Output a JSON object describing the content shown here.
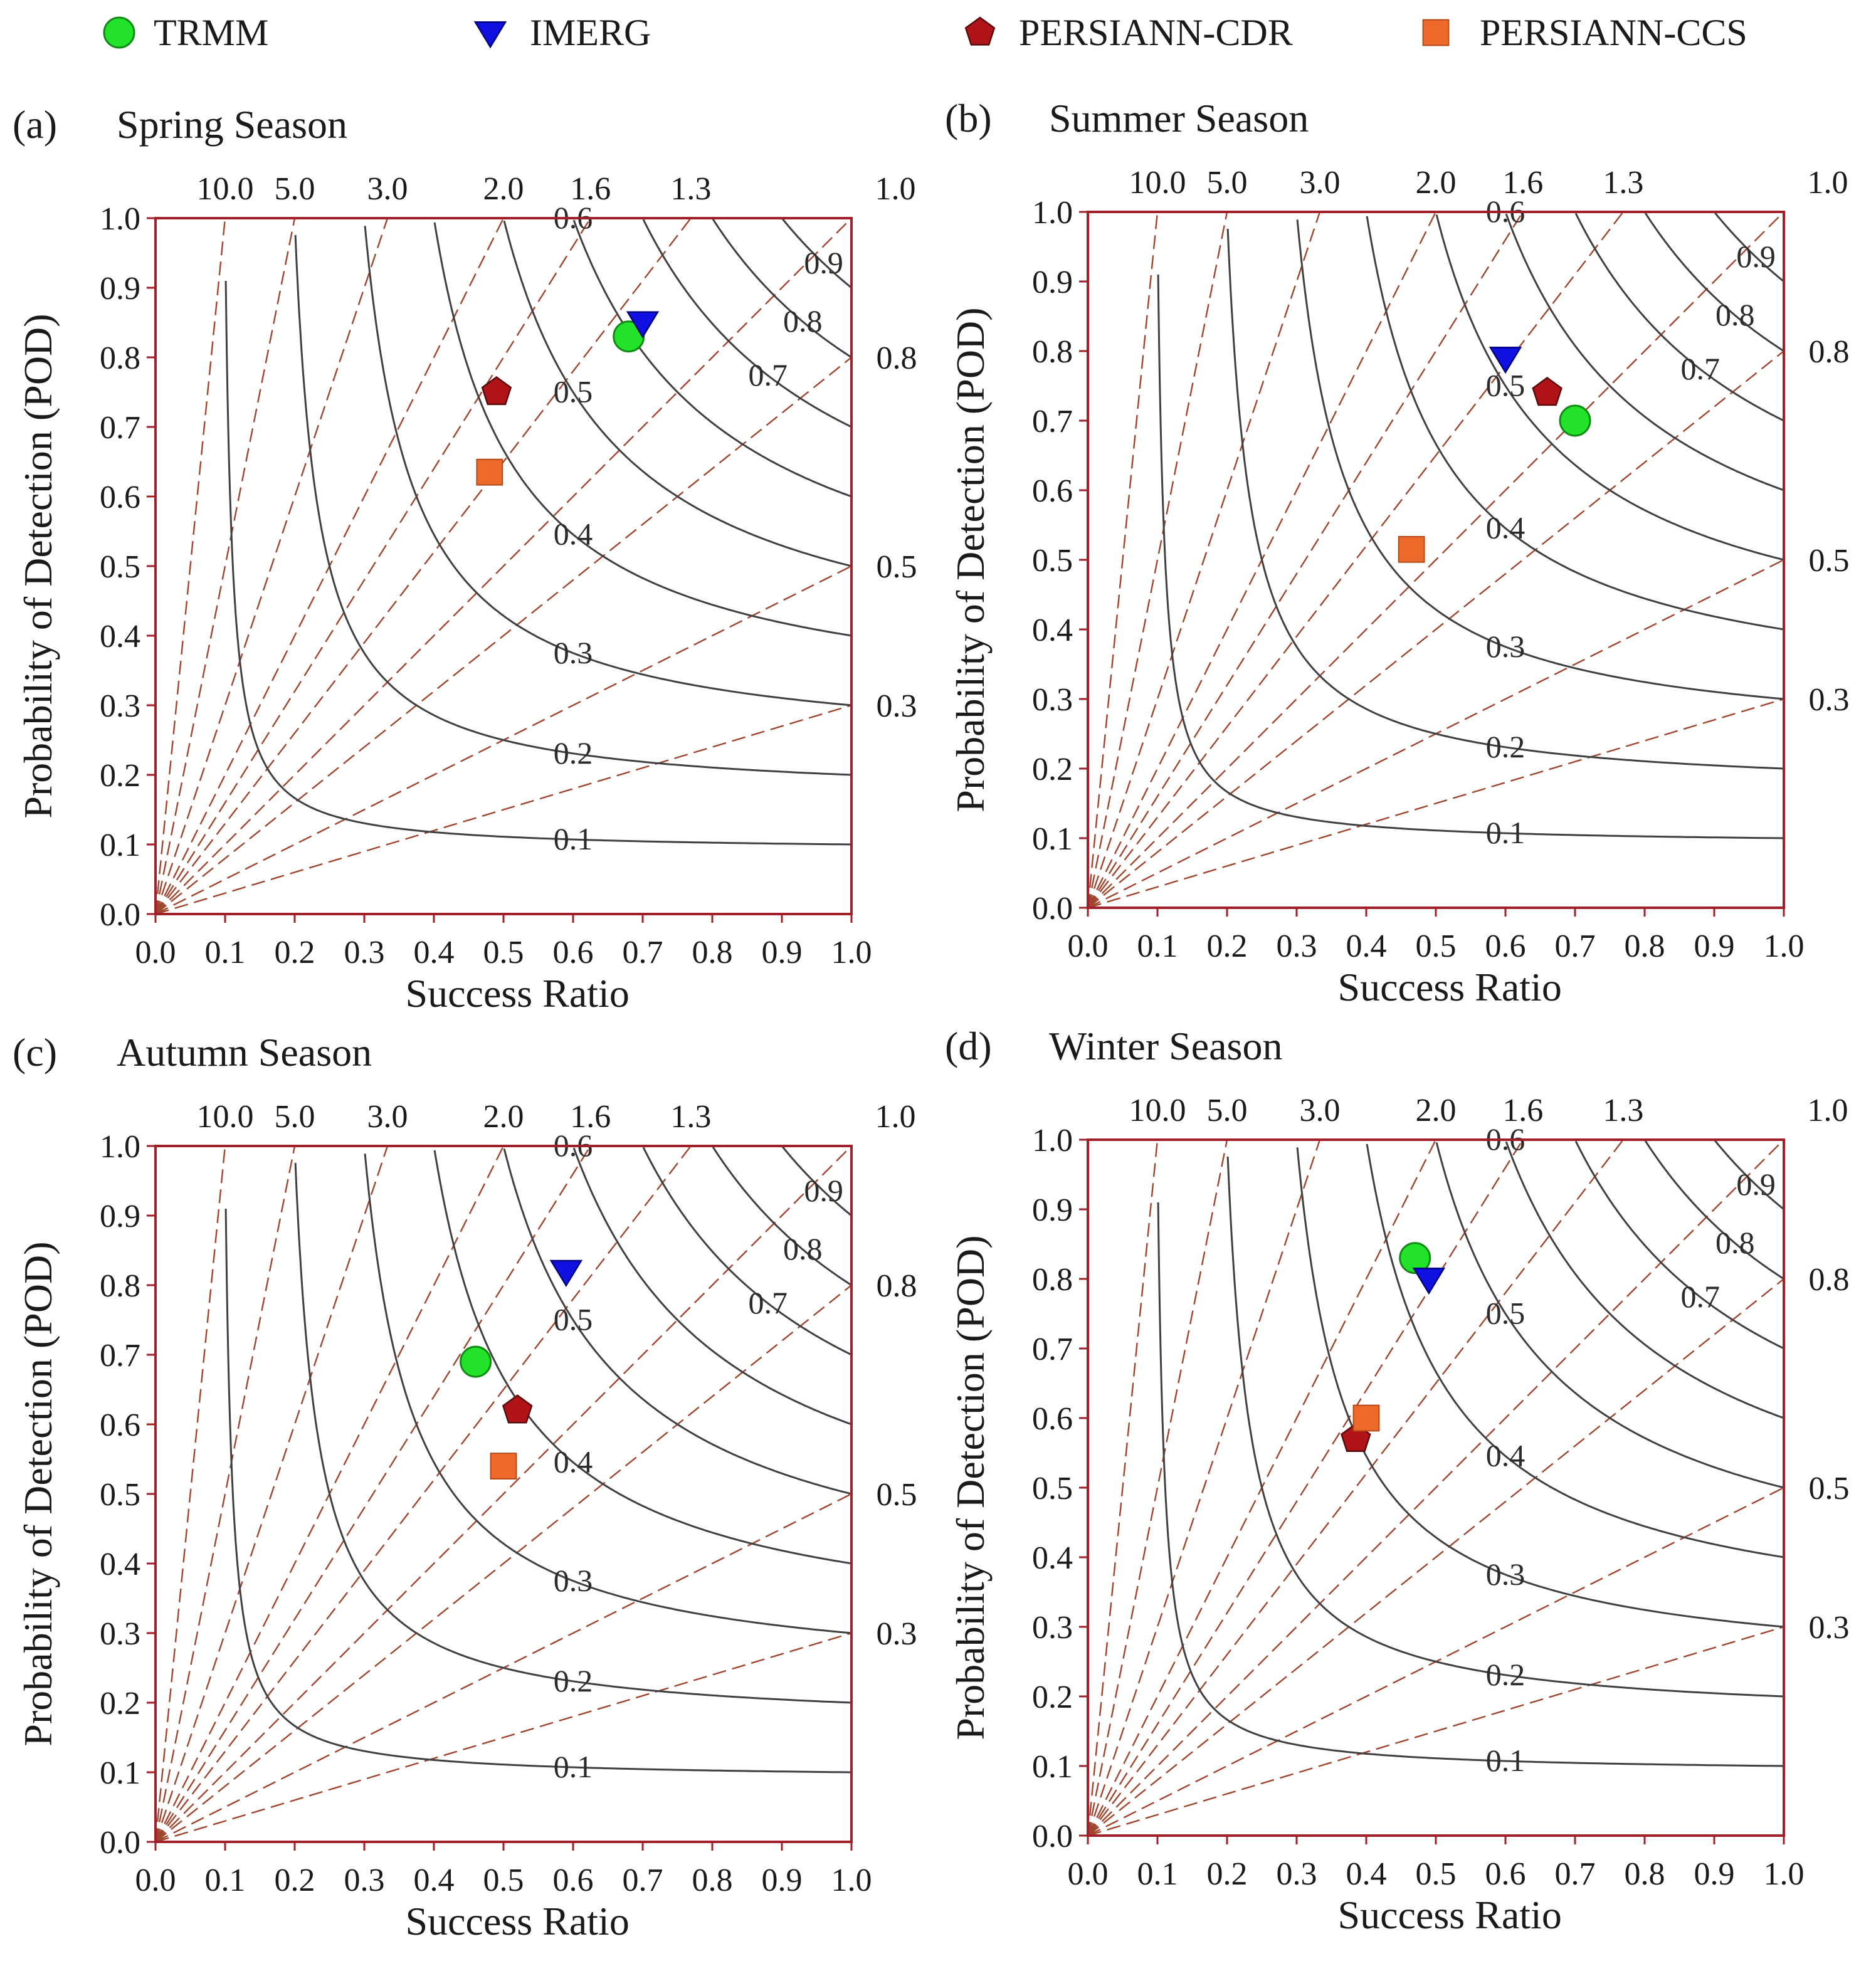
{
  "legend": [
    {
      "name": "TRMM",
      "marker": "circle",
      "color": "#22e22a",
      "stroke": "#118a14"
    },
    {
      "name": "IMERG",
      "marker": "triangle-down",
      "color": "#1010e0",
      "stroke": "#000080"
    },
    {
      "name": "PERSIANN-CDR",
      "marker": "pentagon",
      "color": "#b01418",
      "stroke": "#5a0a0a"
    },
    {
      "name": "PERSIANN-CCS",
      "marker": "square",
      "color": "#ee6a2a",
      "stroke": "#b44a18"
    }
  ],
  "colors": {
    "frame": "#a01f28",
    "bias_lines": "#a0452e",
    "csi_curves": "#404040"
  },
  "chart_data": [
    {
      "type": "scatter",
      "panel": "(a)",
      "title": "Spring Season",
      "xlabel": "Success Ratio",
      "ylabel": "Probability of Detection (POD)",
      "xlim": [
        0,
        1
      ],
      "ylim": [
        0,
        1
      ],
      "xticks": [
        "0.0",
        "0.1",
        "0.2",
        "0.3",
        "0.4",
        "0.5",
        "0.6",
        "0.7",
        "0.8",
        "0.9",
        "1.0"
      ],
      "yticks": [
        "0.0",
        "0.1",
        "0.2",
        "0.3",
        "0.4",
        "0.5",
        "0.6",
        "0.7",
        "0.8",
        "0.9",
        "1.0"
      ],
      "bias_values": [
        10.0,
        5.0,
        3.0,
        2.0,
        1.6,
        1.3,
        1.0,
        0.8,
        0.5,
        0.3
      ],
      "bias_top_labels": [
        "10.0",
        "5.0",
        "3.0",
        "2.0",
        "1.6",
        "1.3",
        "1.0"
      ],
      "bias_right_labels": [
        "0.8",
        "0.5",
        "0.3"
      ],
      "csi_values": [
        0.1,
        0.2,
        0.3,
        0.4,
        0.5,
        0.6,
        0.7,
        0.8,
        0.9
      ],
      "csi_labels": [
        "0.1",
        "0.2",
        "0.3",
        "0.4",
        "0.5",
        "0.6",
        "0.7",
        "0.8",
        "0.9"
      ],
      "points": [
        {
          "series": "TRMM",
          "sr": 0.68,
          "pod": 0.83
        },
        {
          "series": "IMERG",
          "sr": 0.7,
          "pod": 0.85
        },
        {
          "series": "PERSIANN-CDR",
          "sr": 0.49,
          "pod": 0.75
        },
        {
          "series": "PERSIANN-CCS",
          "sr": 0.48,
          "pod": 0.635
        }
      ]
    },
    {
      "type": "scatter",
      "panel": "(b)",
      "title": "Summer Season",
      "xlabel": "Success Ratio",
      "ylabel": "Probability of Detection (POD)",
      "xlim": [
        0,
        1
      ],
      "ylim": [
        0,
        1
      ],
      "xticks": [
        "0.0",
        "0.1",
        "0.2",
        "0.3",
        "0.4",
        "0.5",
        "0.6",
        "0.7",
        "0.8",
        "0.9",
        "1.0"
      ],
      "yticks": [
        "0.0",
        "0.1",
        "0.2",
        "0.3",
        "0.4",
        "0.5",
        "0.6",
        "0.7",
        "0.8",
        "0.9",
        "1.0"
      ],
      "bias_values": [
        10.0,
        5.0,
        3.0,
        2.0,
        1.6,
        1.3,
        1.0,
        0.8,
        0.5,
        0.3
      ],
      "bias_top_labels": [
        "10.0",
        "5.0",
        "3.0",
        "2.0",
        "1.6",
        "1.3",
        "1.0"
      ],
      "bias_right_labels": [
        "0.8",
        "0.5",
        "0.3"
      ],
      "csi_values": [
        0.1,
        0.2,
        0.3,
        0.4,
        0.5,
        0.6,
        0.7,
        0.8,
        0.9
      ],
      "csi_labels": [
        "0.1",
        "0.2",
        "0.3",
        "0.4",
        "0.5",
        "0.6",
        "0.7",
        "0.8",
        "0.9"
      ],
      "points": [
        {
          "series": "TRMM",
          "sr": 0.7,
          "pod": 0.7
        },
        {
          "series": "IMERG",
          "sr": 0.6,
          "pod": 0.79
        },
        {
          "series": "PERSIANN-CDR",
          "sr": 0.66,
          "pod": 0.74
        },
        {
          "series": "PERSIANN-CCS",
          "sr": 0.465,
          "pod": 0.515
        }
      ]
    },
    {
      "type": "scatter",
      "panel": "(c)",
      "title": "Autumn Season",
      "xlabel": "Success Ratio",
      "ylabel": "Probability of Detection (POD)",
      "xlim": [
        0,
        1
      ],
      "ylim": [
        0,
        1
      ],
      "xticks": [
        "0.0",
        "0.1",
        "0.2",
        "0.3",
        "0.4",
        "0.5",
        "0.6",
        "0.7",
        "0.8",
        "0.9",
        "1.0"
      ],
      "yticks": [
        "0.0",
        "0.1",
        "0.2",
        "0.3",
        "0.4",
        "0.5",
        "0.6",
        "0.7",
        "0.8",
        "0.9",
        "1.0"
      ],
      "bias_values": [
        10.0,
        5.0,
        3.0,
        2.0,
        1.6,
        1.3,
        1.0,
        0.8,
        0.5,
        0.3
      ],
      "bias_top_labels": [
        "10.0",
        "5.0",
        "3.0",
        "2.0",
        "1.6",
        "1.3",
        "1.0"
      ],
      "bias_right_labels": [
        "0.8",
        "0.5",
        "0.3"
      ],
      "csi_values": [
        0.1,
        0.2,
        0.3,
        0.4,
        0.5,
        0.6,
        0.7,
        0.8,
        0.9
      ],
      "csi_labels": [
        "0.1",
        "0.2",
        "0.3",
        "0.4",
        "0.5",
        "0.6",
        "0.7",
        "0.8",
        "0.9"
      ],
      "points": [
        {
          "series": "TRMM",
          "sr": 0.46,
          "pod": 0.69
        },
        {
          "series": "IMERG",
          "sr": 0.59,
          "pod": 0.82
        },
        {
          "series": "PERSIANN-CDR",
          "sr": 0.52,
          "pod": 0.62
        },
        {
          "series": "PERSIANN-CCS",
          "sr": 0.5,
          "pod": 0.54
        }
      ]
    },
    {
      "type": "scatter",
      "panel": "(d)",
      "title": "Winter Season",
      "xlabel": "Success Ratio",
      "ylabel": "Probability of Detection (POD)",
      "xlim": [
        0,
        1
      ],
      "ylim": [
        0,
        1
      ],
      "xticks": [
        "0.0",
        "0.1",
        "0.2",
        "0.3",
        "0.4",
        "0.5",
        "0.6",
        "0.7",
        "0.8",
        "0.9",
        "1.0"
      ],
      "yticks": [
        "0.0",
        "0.1",
        "0.2",
        "0.3",
        "0.4",
        "0.5",
        "0.6",
        "0.7",
        "0.8",
        "0.9",
        "1.0"
      ],
      "bias_values": [
        10.0,
        5.0,
        3.0,
        2.0,
        1.6,
        1.3,
        1.0,
        0.8,
        0.5,
        0.3
      ],
      "bias_top_labels": [
        "10.0",
        "5.0",
        "3.0",
        "2.0",
        "1.6",
        "1.3",
        "1.0"
      ],
      "bias_right_labels": [
        "0.8",
        "0.5",
        "0.3"
      ],
      "csi_values": [
        0.1,
        0.2,
        0.3,
        0.4,
        0.5,
        0.6,
        0.7,
        0.8,
        0.9
      ],
      "csi_labels": [
        "0.1",
        "0.2",
        "0.3",
        "0.4",
        "0.5",
        "0.6",
        "0.7",
        "0.8",
        "0.9"
      ],
      "points": [
        {
          "series": "TRMM",
          "sr": 0.47,
          "pod": 0.83
        },
        {
          "series": "IMERG",
          "sr": 0.49,
          "pod": 0.8
        },
        {
          "series": "PERSIANN-CDR",
          "sr": 0.385,
          "pod": 0.57
        },
        {
          "series": "PERSIANN-CCS",
          "sr": 0.4,
          "pod": 0.6
        }
      ]
    }
  ]
}
